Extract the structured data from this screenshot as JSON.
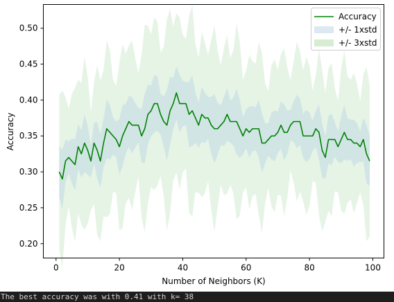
{
  "chart_data": {
    "type": "line",
    "title": "",
    "xlabel": "Number of Neighbors (K)",
    "ylabel": "Accuracy",
    "xlim": [
      -4.0,
      103.5
    ],
    "ylim": [
      0.18,
      0.533
    ],
    "xticks": [
      0,
      20,
      40,
      60,
      80,
      100
    ],
    "yticks": [
      0.2,
      0.25,
      0.3,
      0.35,
      0.4,
      0.45,
      0.5
    ],
    "grid": false,
    "legend_position": "top-right",
    "x": [
      1,
      2,
      3,
      4,
      5,
      6,
      7,
      8,
      9,
      10,
      11,
      12,
      13,
      14,
      15,
      16,
      17,
      18,
      19,
      20,
      21,
      22,
      23,
      24,
      25,
      26,
      27,
      28,
      29,
      30,
      31,
      32,
      33,
      34,
      35,
      36,
      37,
      38,
      39,
      40,
      41,
      42,
      43,
      44,
      45,
      46,
      47,
      48,
      49,
      50,
      51,
      52,
      53,
      54,
      55,
      56,
      57,
      58,
      59,
      60,
      61,
      62,
      63,
      64,
      65,
      66,
      67,
      68,
      69,
      70,
      71,
      72,
      73,
      74,
      75,
      76,
      77,
      78,
      79,
      80,
      81,
      82,
      83,
      84,
      85,
      86,
      87,
      88,
      89,
      90,
      91,
      92,
      93,
      94,
      95,
      96,
      97,
      98,
      99
    ],
    "series": [
      {
        "name": "Accuracy",
        "color": "#008000",
        "values": [
          0.3,
          0.29,
          0.315,
          0.32,
          0.315,
          0.31,
          0.335,
          0.325,
          0.34,
          0.33,
          0.315,
          0.34,
          0.33,
          0.315,
          0.34,
          0.36,
          0.355,
          0.35,
          0.345,
          0.335,
          0.35,
          0.36,
          0.37,
          0.365,
          0.365,
          0.365,
          0.35,
          0.36,
          0.38,
          0.385,
          0.395,
          0.395,
          0.38,
          0.37,
          0.365,
          0.385,
          0.395,
          0.41,
          0.395,
          0.395,
          0.395,
          0.38,
          0.385,
          0.375,
          0.365,
          0.38,
          0.375,
          0.375,
          0.365,
          0.36,
          0.36,
          0.365,
          0.37,
          0.38,
          0.37,
          0.37,
          0.37,
          0.36,
          0.35,
          0.36,
          0.355,
          0.36,
          0.36,
          0.36,
          0.34,
          0.34,
          0.345,
          0.35,
          0.35,
          0.355,
          0.365,
          0.355,
          0.355,
          0.365,
          0.37,
          0.37,
          0.37,
          0.35,
          0.35,
          0.35,
          0.35,
          0.36,
          0.355,
          0.33,
          0.32,
          0.345,
          0.345,
          0.345,
          0.335,
          0.345,
          0.355,
          0.345,
          0.345,
          0.34,
          0.34,
          0.335,
          0.345,
          0.325,
          0.315
        ]
      },
      {
        "name": "+/- 1xstd",
        "color": "#cfe0f0",
        "type": "band",
        "std_multiplier": 1
      },
      {
        "name": "+/- 3xstd",
        "color": "#c8e6c8",
        "type": "band",
        "std_multiplier": 3
      }
    ]
  },
  "console": {
    "text": "The best accuracy was with 0.41 with k= 38"
  }
}
